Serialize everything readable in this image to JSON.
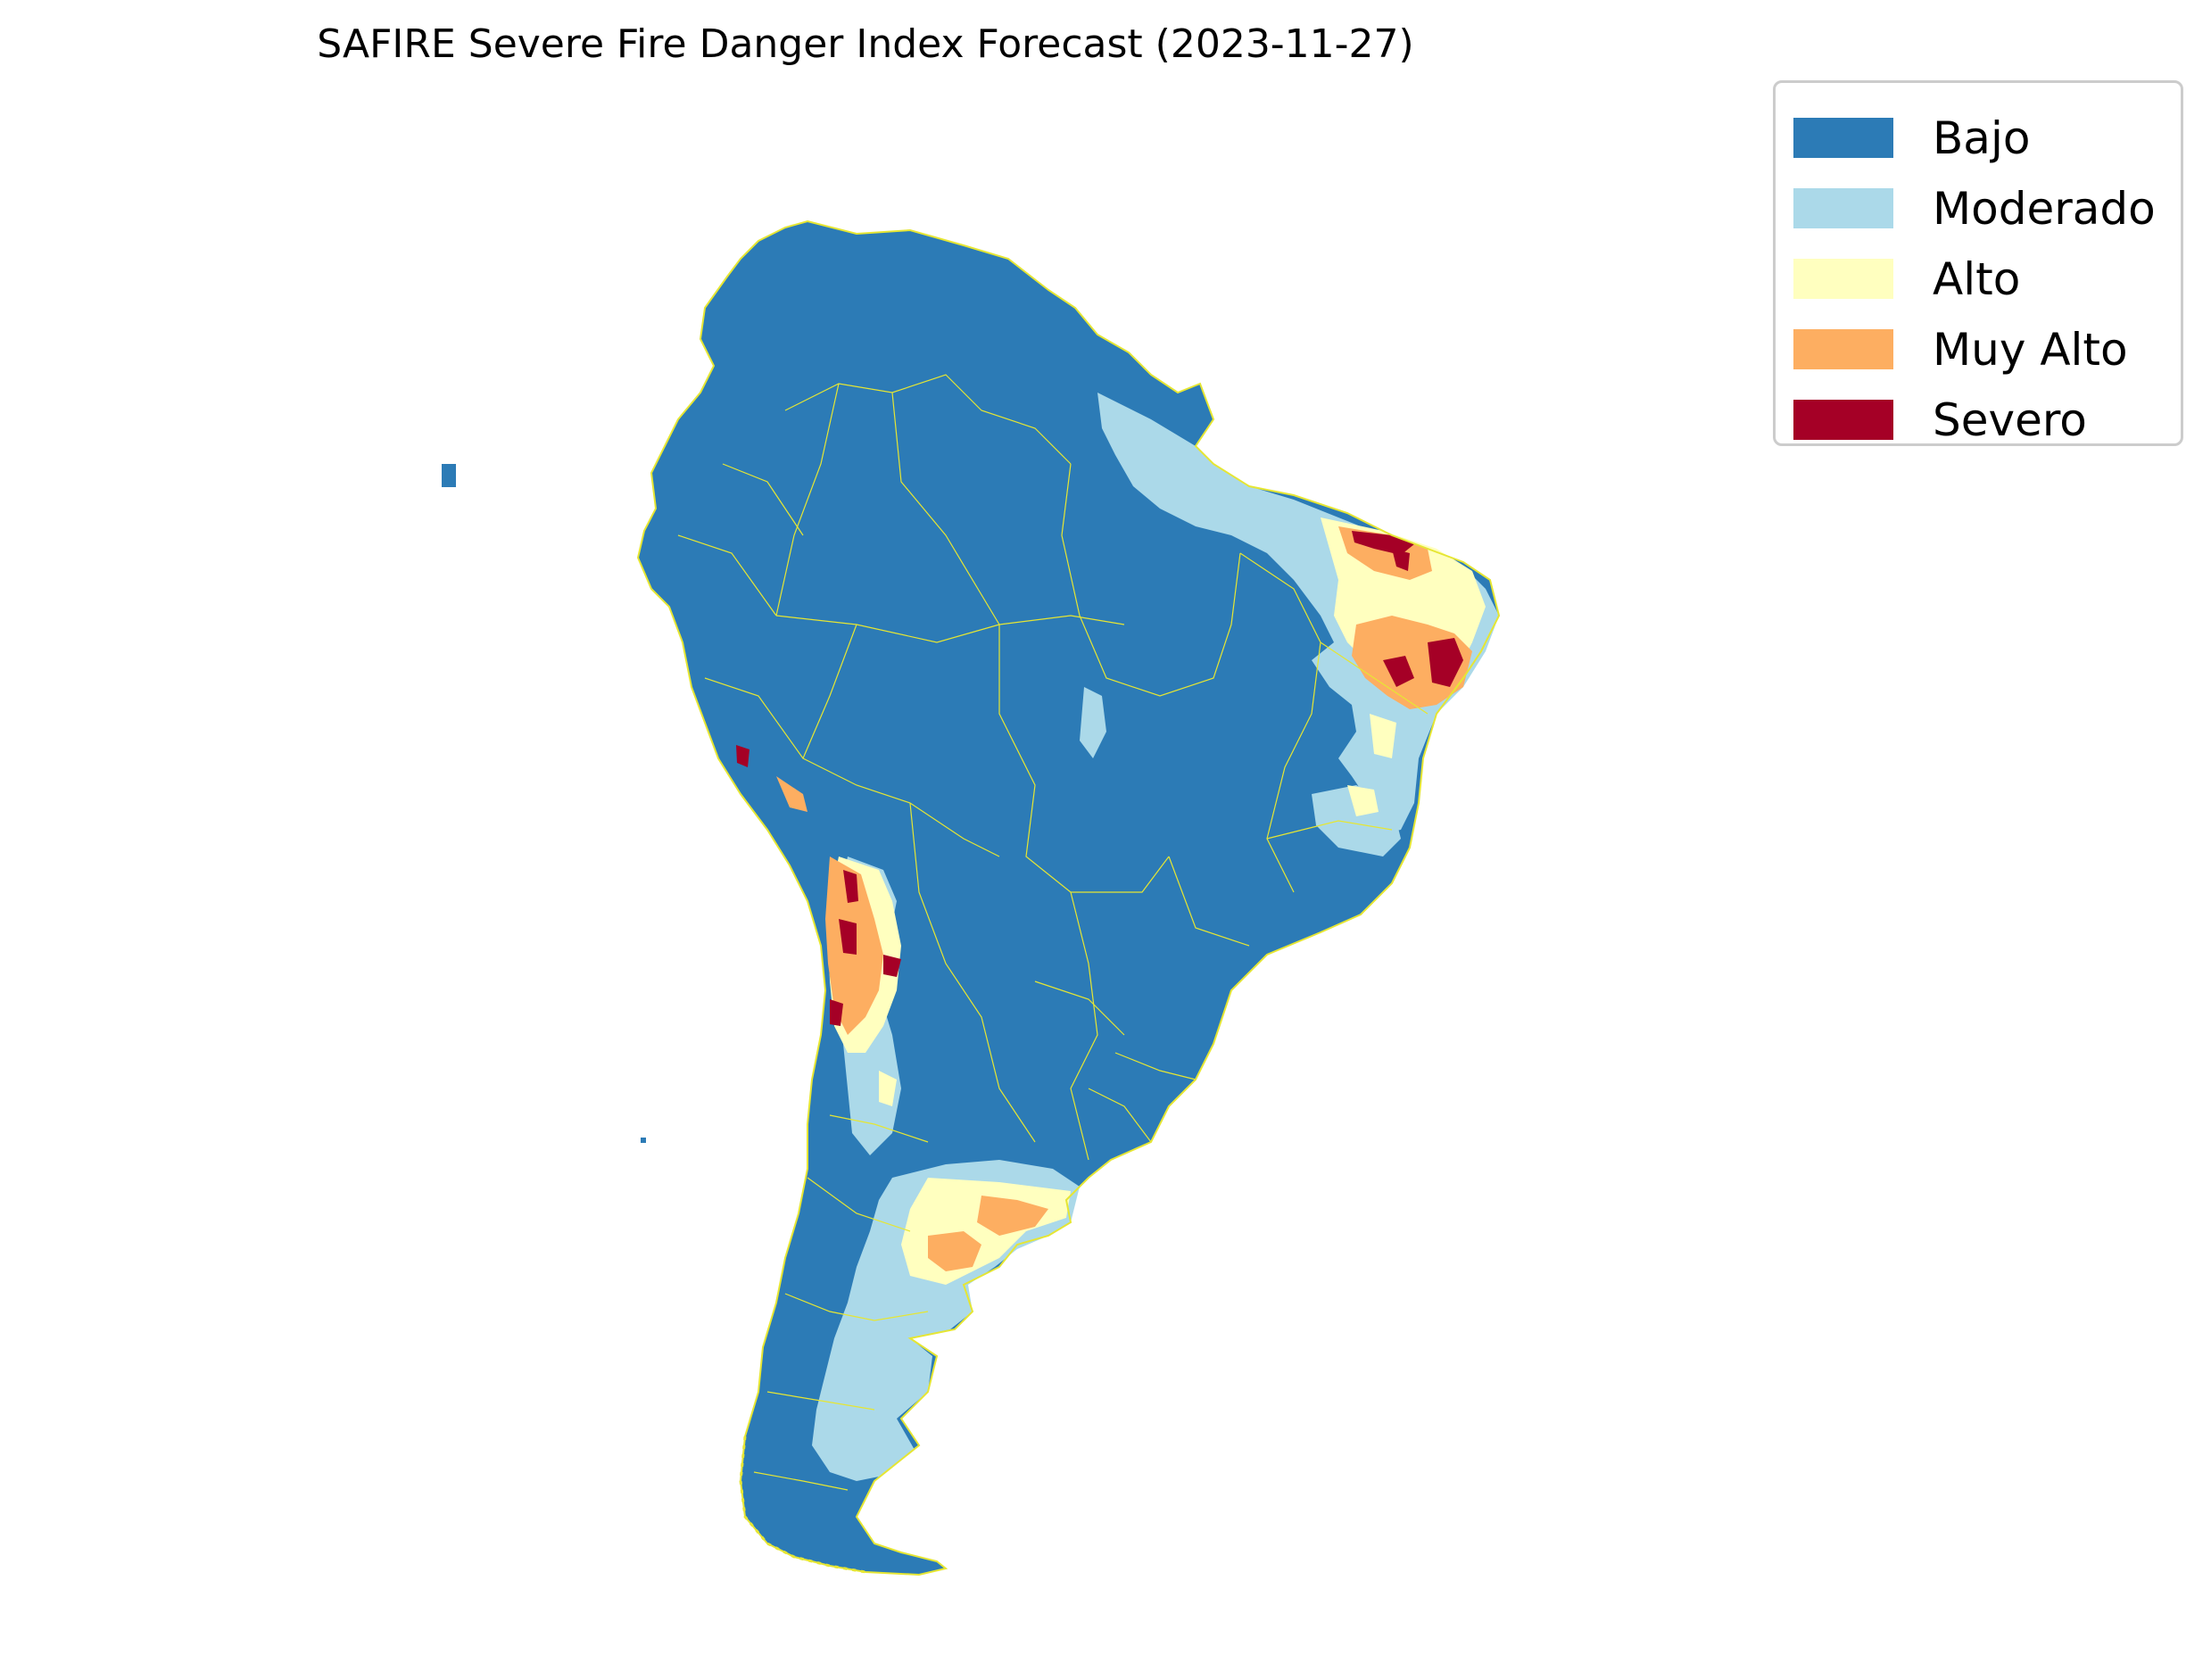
{
  "title": "SAFIRE Severe Fire Danger Index Forecast (2023-11-27)",
  "legend": {
    "placement": "upper-right",
    "items": [
      {
        "label": "Bajo",
        "color": "#2c7bb6"
      },
      {
        "label": "Moderado",
        "color": "#abd9e9"
      },
      {
        "label": "Alto",
        "color": "#ffffbf"
      },
      {
        "label": "Muy Alto",
        "color": "#fdae61"
      },
      {
        "label": "Severo",
        "color": "#a50026"
      }
    ]
  },
  "map": {
    "region": "South America",
    "boundary_color": "#e6e633",
    "background": "#ffffff"
  }
}
